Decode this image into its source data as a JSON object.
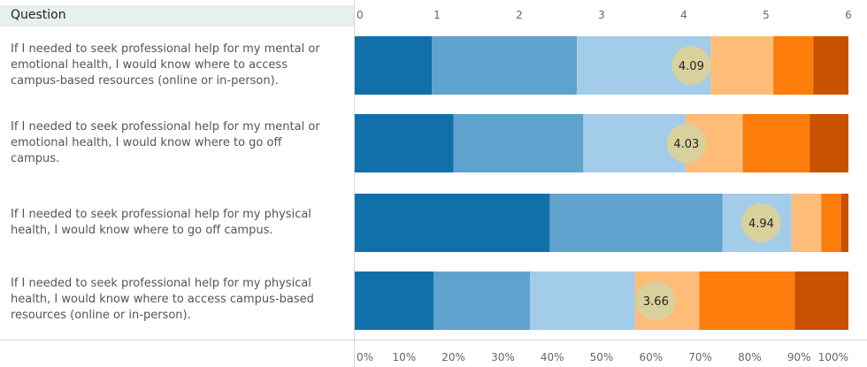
{
  "header": {
    "column_label": "Question"
  },
  "chart_data": {
    "type": "bar",
    "orientation": "horizontal",
    "stacked": true,
    "normalized": true,
    "top_axis": {
      "min": 0,
      "max": 6,
      "ticks": [
        0,
        1,
        2,
        3,
        4,
        5,
        6
      ]
    },
    "bottom_axis": {
      "min": 0,
      "max": 100,
      "ticks": [
        "0%",
        "10%",
        "20%",
        "30%",
        "40%",
        "50%",
        "60%",
        "70%",
        "80%",
        "90%",
        "100%"
      ]
    },
    "segment_colors": [
      "#1170aa",
      "#5fa2ce",
      "#a3cce9",
      "#ffbc79",
      "#fc7d0b",
      "#c85200"
    ],
    "mean_marker_color": "#d9d19c",
    "categories": [
      "If I needed to seek professional help for my mental or emotional health, I would know where to access campus-based resources (online or in-person).",
      "If I needed to seek professional help for my mental or emotional health, I would know where to go off campus.",
      "If I needed to seek professional help for my physical health, I would know where to go off campus.",
      "If I needed to seek professional help for my physical health, I would know where to access campus-based resources (online or in-person)."
    ],
    "question_lines": [
      [
        "If I needed to seek professional help for my mental or",
        "emotional health, I would know where to access",
        "campus-based resources (online or in-person)."
      ],
      [
        "If I needed to seek professional help for my mental or",
        "emotional health, I would know where to go off",
        "campus."
      ],
      [
        "If I needed to seek professional help for my physical",
        "health, I would know where to go off campus."
      ],
      [
        "If I needed to seek professional help for my physical",
        "health, I would know where to access campus-based",
        "resources (online or in-person)."
      ]
    ],
    "segments_percent": [
      [
        15.6,
        29.4,
        27.1,
        12.7,
        8.1,
        7.1
      ],
      [
        20.0,
        26.3,
        20.7,
        11.6,
        13.6,
        7.8
      ],
      [
        39.5,
        35.0,
        14.0,
        6.0,
        4.0,
        1.5
      ],
      [
        16.0,
        19.5,
        21.3,
        13.0,
        19.3,
        10.9
      ]
    ],
    "means": [
      4.09,
      4.03,
      4.94,
      3.66
    ]
  }
}
